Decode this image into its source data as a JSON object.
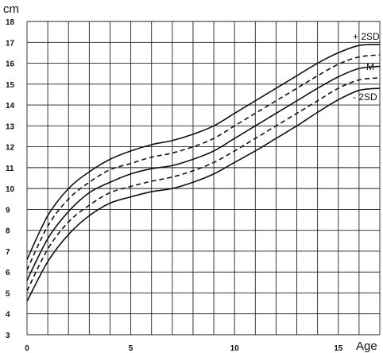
{
  "chart_data": {
    "type": "line",
    "xlabel": "Age",
    "ylabel": "cm",
    "xlim": [
      0,
      17
    ],
    "ylim": [
      3,
      18
    ],
    "xticks": [
      0,
      5,
      10,
      15
    ],
    "yticks": [
      3,
      4,
      5,
      6,
      7,
      8,
      9,
      10,
      11,
      12,
      13,
      14,
      15,
      16,
      17,
      18
    ],
    "grid": true,
    "x": [
      0,
      1,
      2,
      3,
      4,
      5,
      6,
      7,
      8,
      9,
      10,
      11,
      12,
      13,
      14,
      15,
      16,
      17
    ],
    "series": [
      {
        "name": "+ 2SD",
        "style": "solid",
        "values": [
          6.6,
          8.7,
          10.0,
          10.8,
          11.4,
          11.8,
          12.1,
          12.3,
          12.6,
          13.0,
          13.6,
          14.2,
          14.8,
          15.4,
          16.0,
          16.5,
          16.85,
          16.9
        ]
      },
      {
        "name": "",
        "style": "dashed",
        "values": [
          6.1,
          8.2,
          9.5,
          10.3,
          10.9,
          11.2,
          11.5,
          11.7,
          12.0,
          12.4,
          13.0,
          13.6,
          14.2,
          14.8,
          15.4,
          15.95,
          16.3,
          16.4
        ]
      },
      {
        "name": "M",
        "style": "solid",
        "values": [
          5.6,
          7.6,
          8.9,
          9.8,
          10.3,
          10.7,
          10.95,
          11.1,
          11.4,
          11.8,
          12.4,
          13.0,
          13.6,
          14.2,
          14.8,
          15.35,
          15.75,
          15.85
        ]
      },
      {
        "name": "",
        "style": "dashed",
        "values": [
          5.1,
          7.1,
          8.4,
          9.2,
          9.8,
          10.1,
          10.35,
          10.55,
          10.85,
          11.25,
          11.8,
          12.4,
          13.0,
          13.6,
          14.2,
          14.8,
          15.2,
          15.3
        ]
      },
      {
        "name": "- 2SD",
        "style": "solid",
        "values": [
          4.6,
          6.5,
          7.8,
          8.7,
          9.3,
          9.6,
          9.85,
          10.0,
          10.3,
          10.7,
          11.25,
          11.8,
          12.4,
          13.0,
          13.65,
          14.25,
          14.7,
          14.8
        ]
      }
    ]
  },
  "colors": {
    "grid": "#222222",
    "curve": "#111111",
    "background": "#ffffff"
  }
}
